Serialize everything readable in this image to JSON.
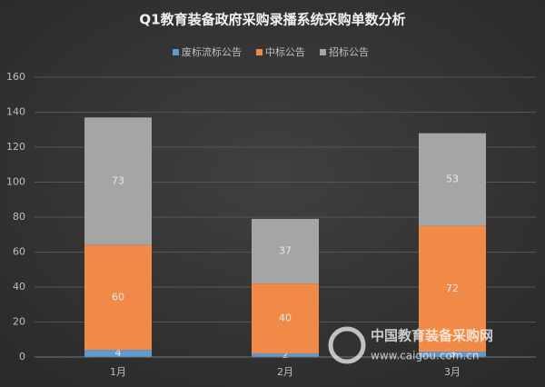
{
  "chart_data": {
    "type": "stacked_bar",
    "title": "Q1教育装备政府采购录播系统采购单数分析",
    "categories": [
      "1月",
      "2月",
      "3月"
    ],
    "series": [
      {
        "name": "废标流标公告",
        "color": "#5b9bd5",
        "values": [
          4,
          2,
          3
        ]
      },
      {
        "name": "中标公告",
        "color": "#f08a46",
        "values": [
          60,
          40,
          72
        ]
      },
      {
        "name": "招标公告",
        "color": "#a5a5a5",
        "values": [
          73,
          37,
          53
        ]
      }
    ],
    "ylim": [
      0,
      160
    ],
    "yticks": [
      0,
      20,
      40,
      60,
      80,
      100,
      120,
      140,
      160
    ],
    "grid": true,
    "legend": "top",
    "watermark": [
      "中国教育装备采购网",
      "www.caigou.com.cn"
    ]
  }
}
